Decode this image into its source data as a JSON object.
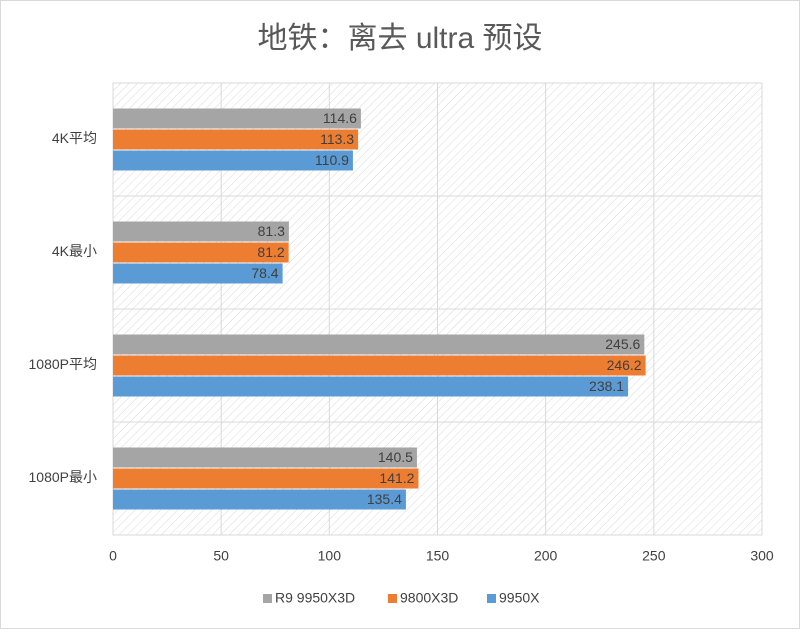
{
  "chart_data": {
    "type": "hbar",
    "title": "地铁：离去 ultra 预设",
    "categories": [
      "4K平均",
      "4K最小",
      "1080P平均",
      "1080P最小"
    ],
    "series": [
      {
        "name": "R9 9950X3D",
        "color": "#a5a5a5",
        "values": [
          114.6,
          81.3,
          245.6,
          140.5
        ]
      },
      {
        "name": "9800X3D",
        "color": "#ed7d31",
        "values": [
          113.3,
          81.2,
          246.2,
          141.2
        ]
      },
      {
        "name": "9950X",
        "color": "#5b9bd5",
        "values": [
          110.9,
          78.4,
          238.1,
          135.4
        ]
      }
    ],
    "xlim": [
      0,
      300
    ],
    "xticks": [
      0,
      50,
      100,
      150,
      200,
      250,
      300
    ],
    "grid": true,
    "legend": "bottom"
  }
}
